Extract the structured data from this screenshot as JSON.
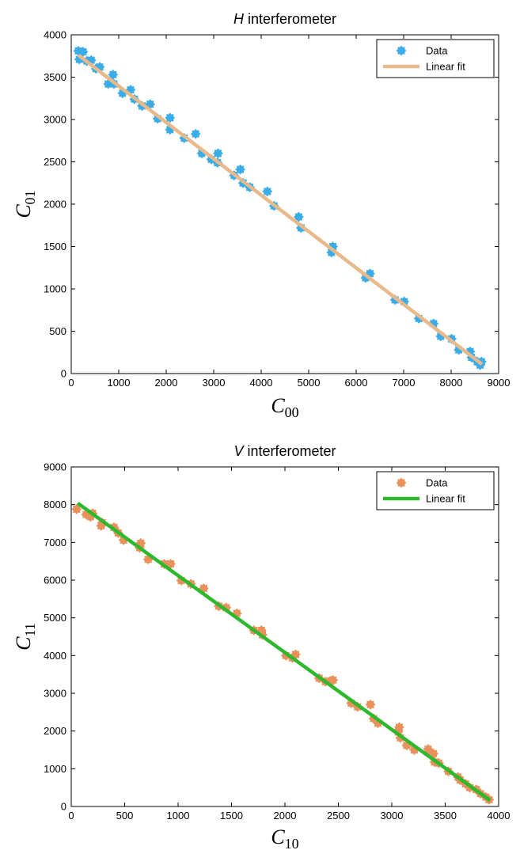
{
  "chart_data": [
    {
      "type": "scatter",
      "title_italic": "H",
      "title_rest": " interferometer",
      "xlabel_main": "C",
      "xlabel_sub": "00",
      "ylabel_main": "C",
      "ylabel_sub": "01",
      "xlim": [
        0,
        9000
      ],
      "ylim": [
        0,
        4000
      ],
      "xticks": [
        0,
        1000,
        2000,
        3000,
        4000,
        5000,
        6000,
        7000,
        8000,
        9000
      ],
      "yticks": [
        0,
        500,
        1000,
        1500,
        2000,
        2500,
        3000,
        3500,
        4000
      ],
      "legend_position": "top-right",
      "marker_color": "#3aace8",
      "fit_color": "#e8b98a",
      "series": [
        {
          "name": "Data",
          "points": [
            [
              150,
              3810
            ],
            [
              170,
              3710
            ],
            [
              250,
              3800
            ],
            [
              330,
              3690
            ],
            [
              420,
              3700
            ],
            [
              520,
              3600
            ],
            [
              600,
              3620
            ],
            [
              780,
              3420
            ],
            [
              880,
              3530
            ],
            [
              900,
              3420
            ],
            [
              1080,
              3310
            ],
            [
              1250,
              3350
            ],
            [
              1330,
              3240
            ],
            [
              1490,
              3160
            ],
            [
              1660,
              3180
            ],
            [
              1820,
              3010
            ],
            [
              2080,
              3020
            ],
            [
              2080,
              2880
            ],
            [
              2380,
              2780
            ],
            [
              2620,
              2830
            ],
            [
              2750,
              2600
            ],
            [
              2950,
              2530
            ],
            [
              3080,
              2490
            ],
            [
              3090,
              2600
            ],
            [
              3430,
              2340
            ],
            [
              3560,
              2410
            ],
            [
              3620,
              2250
            ],
            [
              3760,
              2200
            ],
            [
              4130,
              2150
            ],
            [
              4270,
              1980
            ],
            [
              4790,
              1850
            ],
            [
              4840,
              1720
            ],
            [
              5480,
              1430
            ],
            [
              5510,
              1500
            ],
            [
              6200,
              1130
            ],
            [
              6290,
              1180
            ],
            [
              6820,
              870
            ],
            [
              7010,
              850
            ],
            [
              7320,
              650
            ],
            [
              7630,
              590
            ],
            [
              7780,
              440
            ],
            [
              8010,
              410
            ],
            [
              8160,
              280
            ],
            [
              8400,
              260
            ],
            [
              8430,
              190
            ],
            [
              8550,
              140
            ],
            [
              8610,
              100
            ],
            [
              8640,
              140
            ]
          ]
        },
        {
          "name": "Linear fit",
          "kind": "line",
          "points": [
            [
              150,
              3760
            ],
            [
              8650,
              110
            ]
          ]
        }
      ]
    },
    {
      "type": "scatter",
      "title_italic": "V",
      "title_rest": " interferometer",
      "xlabel_main": "C",
      "xlabel_sub": "10",
      "ylabel_main": "C",
      "ylabel_sub": "11",
      "xlim": [
        0,
        4000
      ],
      "ylim": [
        0,
        9000
      ],
      "xticks": [
        0,
        500,
        1000,
        1500,
        2000,
        2500,
        3000,
        3500,
        4000
      ],
      "yticks": [
        0,
        1000,
        2000,
        3000,
        4000,
        5000,
        6000,
        7000,
        8000,
        9000
      ],
      "legend_position": "top-right",
      "marker_color": "#e8915a",
      "fit_color": "#2eb82e",
      "series": [
        {
          "name": "Data",
          "points": [
            [
              50,
              7880
            ],
            [
              140,
              7740
            ],
            [
              180,
              7680
            ],
            [
              200,
              7770
            ],
            [
              280,
              7440
            ],
            [
              290,
              7520
            ],
            [
              400,
              7400
            ],
            [
              440,
              7250
            ],
            [
              490,
              7060
            ],
            [
              640,
              6860
            ],
            [
              650,
              6980
            ],
            [
              720,
              6550
            ],
            [
              870,
              6430
            ],
            [
              930,
              6430
            ],
            [
              1030,
              5990
            ],
            [
              1120,
              5900
            ],
            [
              1240,
              5780
            ],
            [
              1380,
              5310
            ],
            [
              1450,
              5270
            ],
            [
              1550,
              5120
            ],
            [
              1710,
              4670
            ],
            [
              1780,
              4670
            ],
            [
              1790,
              4550
            ],
            [
              2010,
              4000
            ],
            [
              2070,
              3940
            ],
            [
              2100,
              4030
            ],
            [
              2320,
              3400
            ],
            [
              2380,
              3310
            ],
            [
              2430,
              3330
            ],
            [
              2450,
              3350
            ],
            [
              2620,
              2740
            ],
            [
              2680,
              2640
            ],
            [
              2800,
              2700
            ],
            [
              2830,
              2330
            ],
            [
              2870,
              2210
            ],
            [
              3060,
              1980
            ],
            [
              3070,
              2100
            ],
            [
              3080,
              1820
            ],
            [
              3140,
              1620
            ],
            [
              3210,
              1500
            ],
            [
              3340,
              1520
            ],
            [
              3390,
              1400
            ],
            [
              3400,
              1180
            ],
            [
              3440,
              1150
            ],
            [
              3530,
              930
            ],
            [
              3620,
              780
            ],
            [
              3640,
              700
            ],
            [
              3690,
              600
            ],
            [
              3730,
              500
            ],
            [
              3790,
              450
            ],
            [
              3830,
              340
            ],
            [
              3880,
              250
            ],
            [
              3910,
              180
            ]
          ]
        },
        {
          "name": "Linear fit",
          "kind": "line",
          "points": [
            [
              60,
              8040
            ],
            [
              3920,
              160
            ]
          ]
        }
      ]
    }
  ]
}
